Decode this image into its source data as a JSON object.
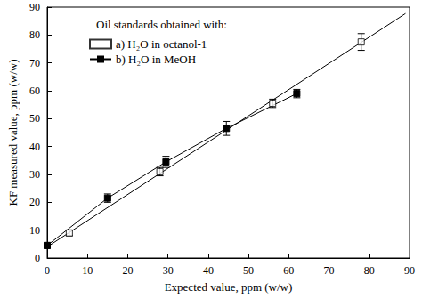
{
  "chart_data": {
    "type": "line",
    "xlabel": "Expected value, ppm (w/w)",
    "ylabel": "KF measured value, ppm (w/w)",
    "legend_title": "Oil standards obtained with:",
    "legend": "upper left",
    "grid": false,
    "xlim": [
      0,
      90
    ],
    "ylim": [
      0,
      90
    ],
    "xticks": [
      0,
      10,
      20,
      30,
      40,
      50,
      60,
      70,
      80,
      90
    ],
    "yticks": [
      0,
      10,
      20,
      30,
      40,
      50,
      60,
      70,
      80,
      90
    ],
    "series": [
      {
        "name": "a) H₂O in octanol-1",
        "type": "scatter",
        "marker": "square_open",
        "color": "#000000",
        "x": [
          0,
          5.5,
          28,
          56,
          78
        ],
        "values": [
          4.5,
          9,
          31,
          55.5,
          77.5
        ],
        "errors": [
          0.8,
          1,
          1.5,
          1.5,
          3
        ]
      },
      {
        "name": "b) H₂O in MeOH",
        "type": "line",
        "marker": "square",
        "line_style": "solid",
        "color": "#000000",
        "x": [
          0,
          15,
          29.5,
          44.5,
          62
        ],
        "values": [
          4.5,
          21.5,
          34.5,
          46.5,
          59
        ],
        "errors": [
          0.8,
          1.5,
          2,
          2.5,
          1.5
        ]
      },
      {
        "type": "line",
        "marker": "none",
        "line_style": "solid",
        "color": "#000000",
        "x": [
          0,
          89
        ],
        "values": [
          4,
          87.7
        ]
      }
    ]
  }
}
